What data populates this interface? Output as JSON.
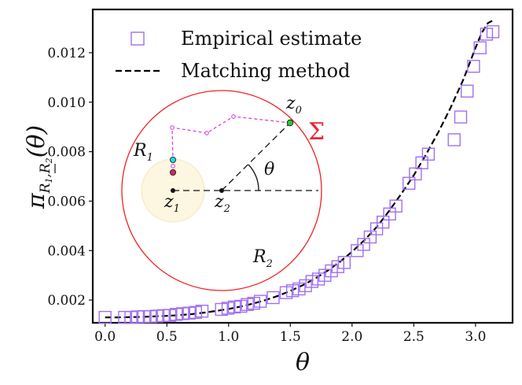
{
  "chart_data": {
    "type": "scatter",
    "title": "",
    "xlabel": "θ",
    "ylabel": "π_{R1,R2}(θ)",
    "ylabel_parts": {
      "base": "π",
      "sub_r1": "R",
      "sub_r1_idx": "1",
      "sep": ",",
      "sub_r2": "R",
      "sub_r2_idx": "2",
      "arg": "(θ)"
    },
    "xlim": [
      -0.1,
      3.3
    ],
    "ylim": [
      0.00108,
      0.01375
    ],
    "xticks": [
      0.0,
      0.5,
      1.0,
      1.5,
      2.0,
      2.5,
      3.0
    ],
    "xtick_labels": [
      "0.0",
      "0.5",
      "1.0",
      "1.5",
      "2.0",
      "2.5",
      "3.0"
    ],
    "yticks": [
      0.002,
      0.004,
      0.006,
      0.008,
      0.01,
      0.012
    ],
    "ytick_labels": [
      "0.002",
      "0.004",
      "0.006",
      "0.008",
      "0.010",
      "0.012"
    ],
    "legend_position": "top-left",
    "series": [
      {
        "name": "Empirical estimate",
        "kind": "markers",
        "marker": "open-square",
        "color": "#a070f0",
        "x": [
          0.0,
          0.157,
          0.209,
          0.262,
          0.314,
          0.366,
          0.419,
          0.471,
          0.524,
          0.576,
          0.628,
          0.681,
          0.733,
          0.785,
          0.942,
          0.995,
          1.047,
          1.099,
          1.152,
          1.204,
          1.257,
          1.361,
          1.466,
          1.518,
          1.571,
          1.623,
          1.675,
          1.728,
          1.78,
          1.833,
          1.885,
          1.937,
          2.042,
          2.094,
          2.147,
          2.199,
          2.251,
          2.304,
          2.356,
          2.461,
          2.513,
          2.565,
          2.618,
          2.827,
          2.88,
          2.932,
          2.984,
          3.037,
          3.089,
          3.141
        ],
        "y": [
          0.0013,
          0.0013,
          0.0013,
          0.00132,
          0.00133,
          0.00133,
          0.00135,
          0.00137,
          0.00138,
          0.00142,
          0.00145,
          0.00147,
          0.0015,
          0.00155,
          0.00162,
          0.00167,
          0.00172,
          0.00175,
          0.00182,
          0.00187,
          0.00195,
          0.0021,
          0.0023,
          0.00238,
          0.00245,
          0.00258,
          0.00275,
          0.00285,
          0.003,
          0.00318,
          0.00335,
          0.00352,
          0.004,
          0.00425,
          0.00455,
          0.00488,
          0.00515,
          0.00548,
          0.0058,
          0.00672,
          0.0071,
          0.00755,
          0.0079,
          0.00848,
          0.0094,
          0.01045,
          0.01145,
          0.0122,
          0.01275,
          0.01285
        ]
      },
      {
        "name": "Matching method",
        "kind": "line",
        "line_style": "dashed",
        "color": "#000000",
        "x": [
          0.0,
          0.1,
          0.2,
          0.3,
          0.4,
          0.5,
          0.6,
          0.7,
          0.8,
          0.9,
          1.0,
          1.1,
          1.2,
          1.3,
          1.4,
          1.5,
          1.6,
          1.7,
          1.8,
          1.9,
          2.0,
          2.1,
          2.2,
          2.3,
          2.4,
          2.5,
          2.6,
          2.7,
          2.8,
          2.9,
          3.0,
          3.05,
          3.1,
          3.14
        ],
        "y": [
          0.0013,
          0.0013,
          0.00131,
          0.00132,
          0.00134,
          0.00136,
          0.00139,
          0.00143,
          0.00149,
          0.00156,
          0.00164,
          0.00174,
          0.00186,
          0.002,
          0.00217,
          0.00237,
          0.0026,
          0.00287,
          0.00318,
          0.00354,
          0.00395,
          0.00442,
          0.00495,
          0.0056,
          0.0063,
          0.00705,
          0.0079,
          0.0088,
          0.0098,
          0.0109,
          0.0122,
          0.0128,
          0.0132,
          0.0133
        ]
      }
    ],
    "inset": {
      "labels": {
        "z0": "z",
        "z0_idx": "0",
        "z1": "z",
        "z1_idx": "1",
        "z2": "z",
        "z2_idx": "2",
        "R1": "R",
        "R1_idx": "1",
        "R2": "R",
        "R2_idx": "2",
        "theta": "θ",
        "sigma": "Σ"
      },
      "colors": {
        "outer_circle": "#ee2222",
        "inner_disk_fill": "#fdf6e0",
        "inner_disk_stroke": "#f3e7bf",
        "path": "#dd33dd",
        "z0_point": "#22cc33",
        "start_point": "#22d6e6",
        "end_point": "#dd2266",
        "sigma": "#ee2233"
      }
    }
  }
}
